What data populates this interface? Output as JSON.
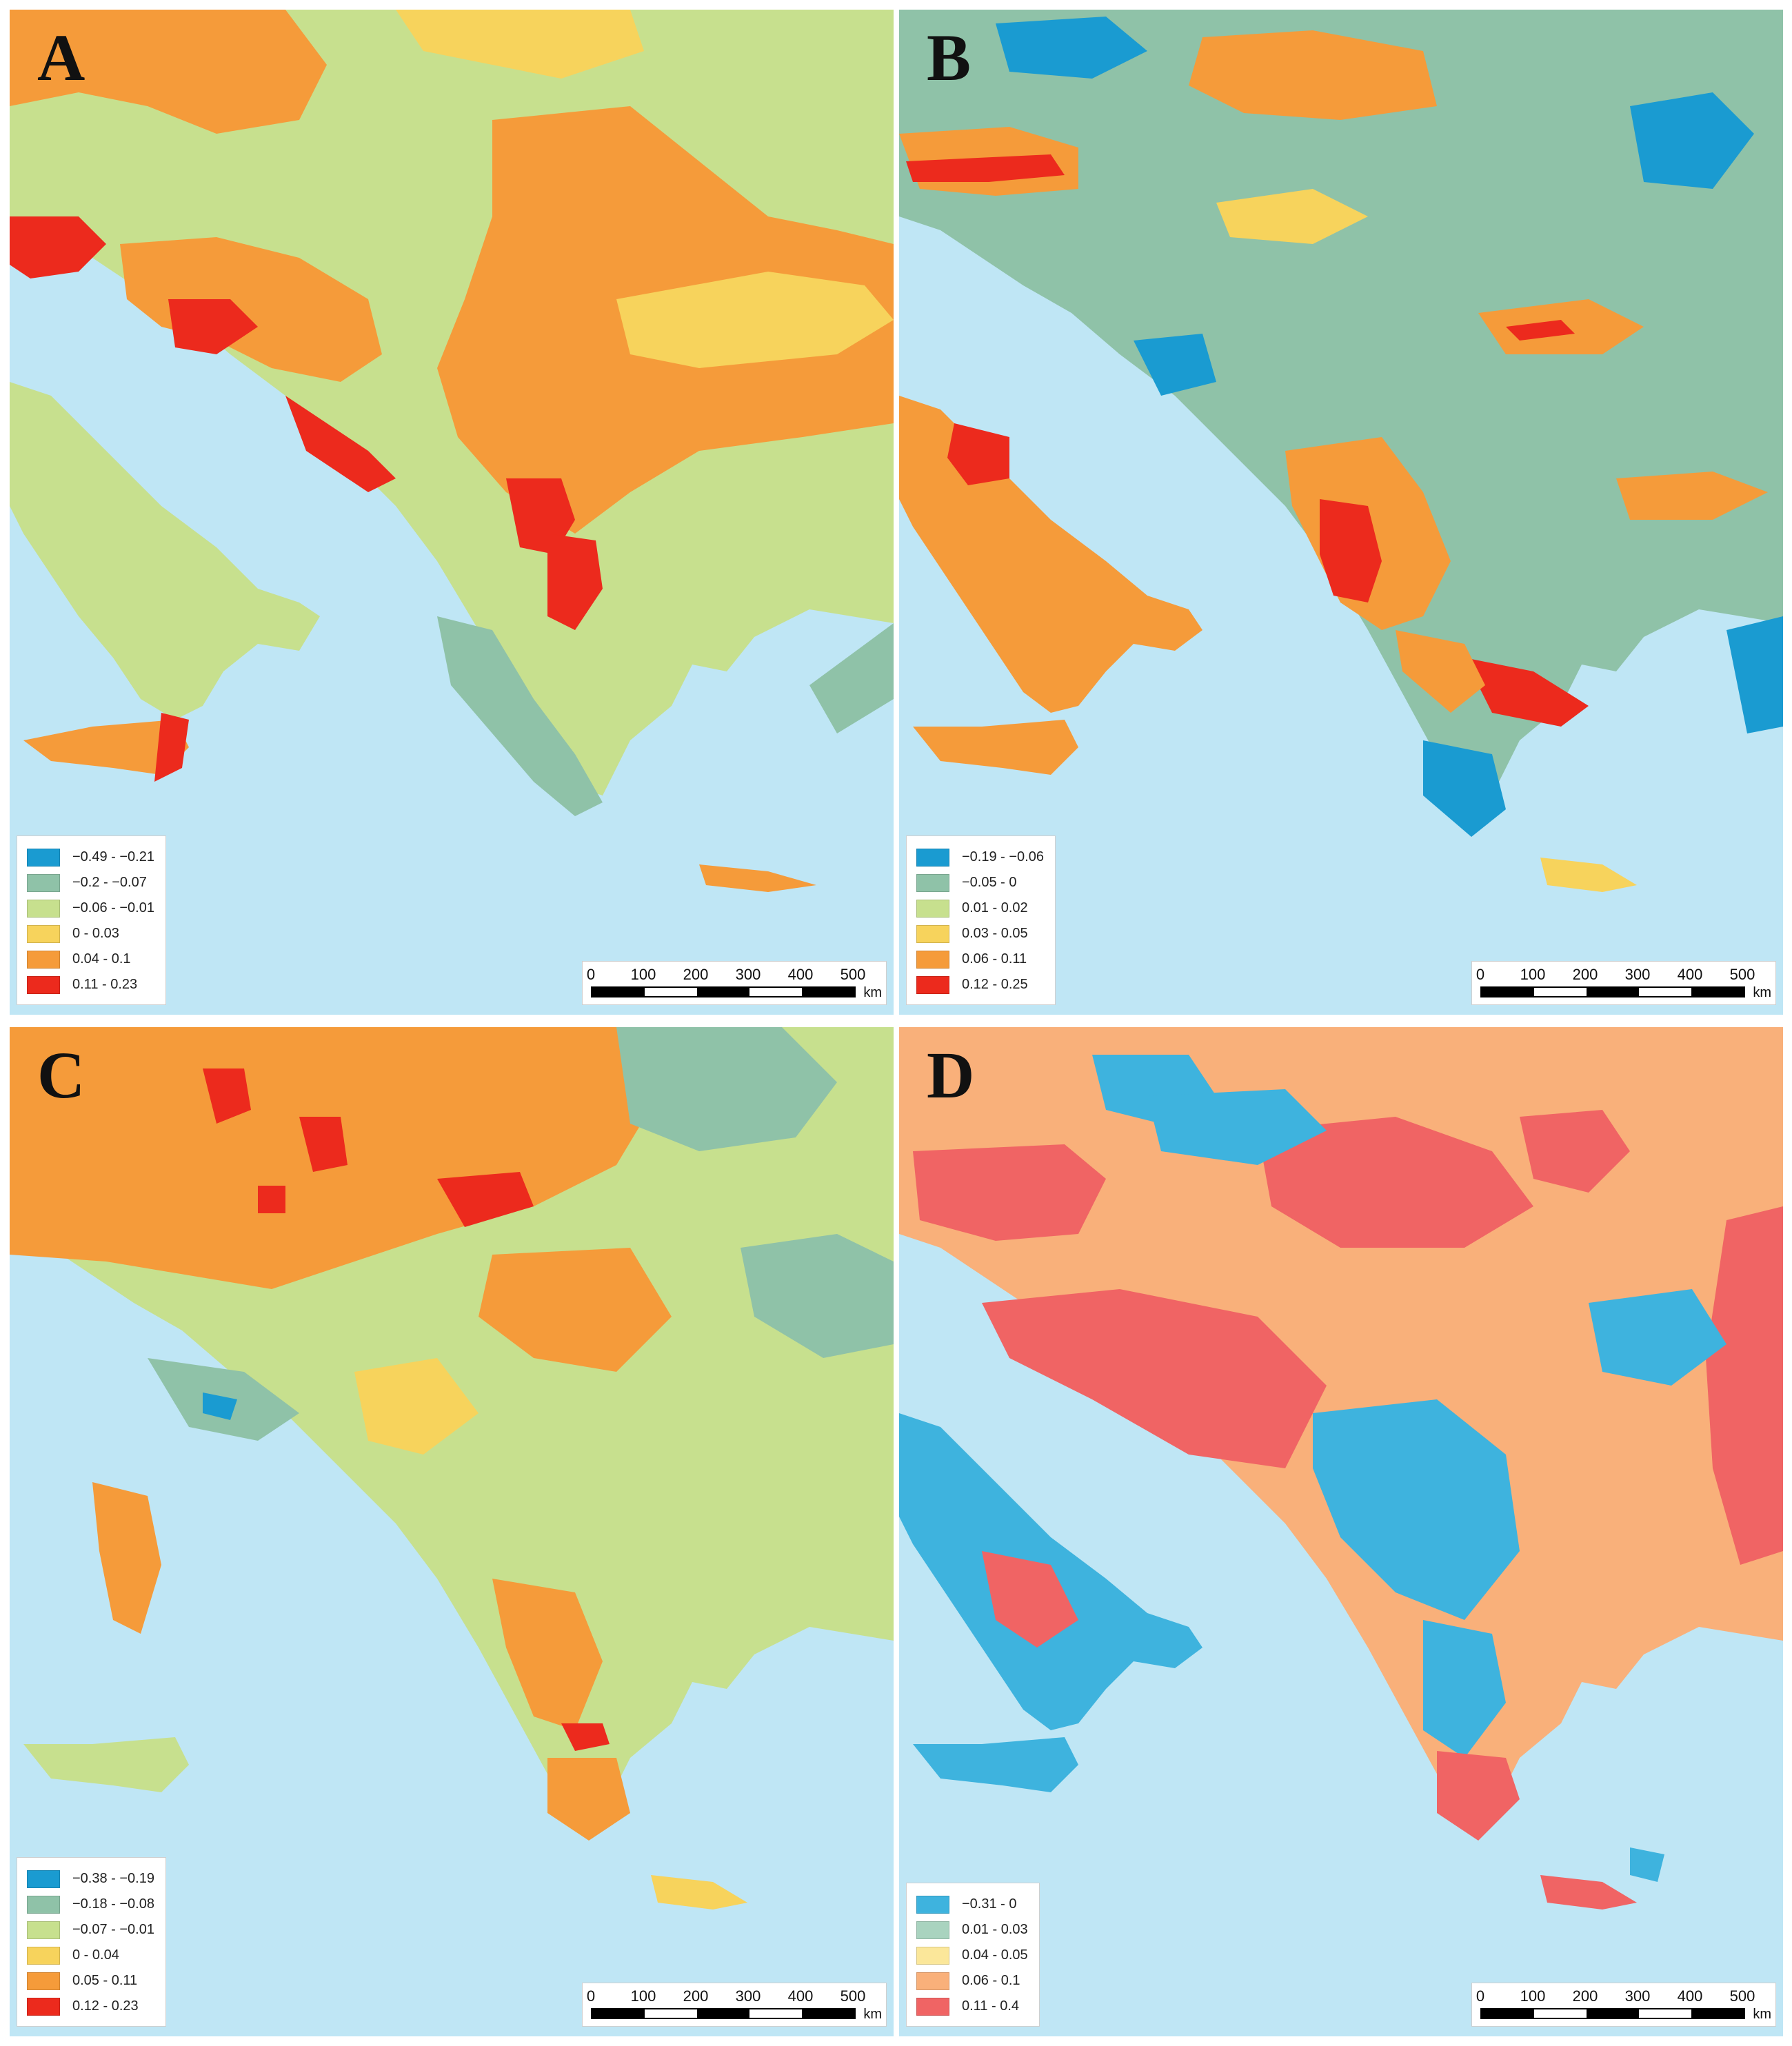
{
  "panels": [
    {
      "letter": "A",
      "legend": [
        {
          "label": "−0.49 - −0.21",
          "color": "#1a9bd1"
        },
        {
          "label": "−0.2 - −0.07",
          "color": "#8fc2a8"
        },
        {
          "label": "−0.06 - −0.01",
          "color": "#c7e08e"
        },
        {
          "label": "0 - 0.03",
          "color": "#f7d35c"
        },
        {
          "label": "0.04 - 0.1",
          "color": "#f59b3a"
        },
        {
          "label": "0.11 - 0.23",
          "color": "#ec2a1d"
        }
      ]
    },
    {
      "letter": "B",
      "legend": [
        {
          "label": "−0.19 - −0.06",
          "color": "#1a9bd1"
        },
        {
          "label": "−0.05 - 0",
          "color": "#8fc2a8"
        },
        {
          "label": "0.01 - 0.02",
          "color": "#c7e08e"
        },
        {
          "label": "0.03 - 0.05",
          "color": "#f7d35c"
        },
        {
          "label": "0.06 - 0.11",
          "color": "#f59b3a"
        },
        {
          "label": "0.12 - 0.25",
          "color": "#ec2a1d"
        }
      ]
    },
    {
      "letter": "C",
      "legend": [
        {
          "label": "−0.38 - −0.19",
          "color": "#1a9bd1"
        },
        {
          "label": "−0.18 - −0.08",
          "color": "#8fc2a8"
        },
        {
          "label": "−0.07 - −0.01",
          "color": "#c7e08e"
        },
        {
          "label": "0 - 0.04",
          "color": "#f7d35c"
        },
        {
          "label": "0.05 - 0.11",
          "color": "#f59b3a"
        },
        {
          "label": "0.12 - 0.23",
          "color": "#ec2a1d"
        }
      ]
    },
    {
      "letter": "D",
      "legend": [
        {
          "label": "−0.31 - 0",
          "color": "#3eb3de"
        },
        {
          "label": "0.01 - 0.03",
          "color": "#a9d3bf"
        },
        {
          "label": "0.04 - 0.05",
          "color": "#fbe79a"
        },
        {
          "label": "0.06 - 0.1",
          "color": "#f9b07a"
        },
        {
          "label": "0.11 - 0.4",
          "color": "#f06464"
        }
      ]
    }
  ],
  "scalebar": {
    "ticks": [
      "0",
      "100",
      "200",
      "300",
      "400",
      "500"
    ],
    "unit": "km"
  }
}
